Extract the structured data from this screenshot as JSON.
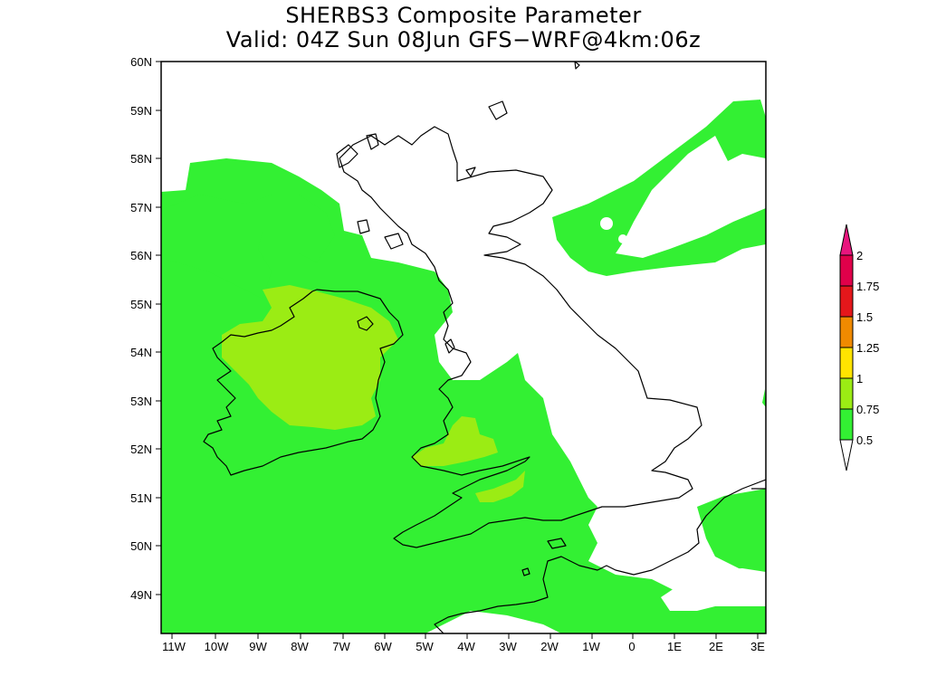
{
  "title": {
    "line1": "SHERBS3 Composite Parameter",
    "line2": "Valid: 04Z Sun 08Jun GFS−WRF@4km:06z"
  },
  "map": {
    "lat_labels": [
      "60N",
      "59N",
      "58N",
      "57N",
      "56N",
      "55N",
      "54N",
      "53N",
      "52N",
      "51N",
      "50N",
      "49N"
    ],
    "lon_labels": [
      "11W",
      "10W",
      "9W",
      "8W",
      "7W",
      "6W",
      "5W",
      "4W",
      "3W",
      "2W",
      "1W",
      "0",
      "1E",
      "2E",
      "3E"
    ]
  },
  "colorbar": {
    "levels": [
      "2",
      "1.75",
      "1.5",
      "1.25",
      "1",
      "0.75",
      "0.5"
    ],
    "colors": {
      "above_2": "#e8157e",
      "1.75_2": "#e0004a",
      "1.5_1.75": "#e4171b",
      "1.25_1.5": "#f08a00",
      "1_1.25": "#ffe400",
      "0.75_1": "#9bec14",
      "0.5_0.75": "#33f033",
      "below_0.5": "#ffffff"
    }
  }
}
